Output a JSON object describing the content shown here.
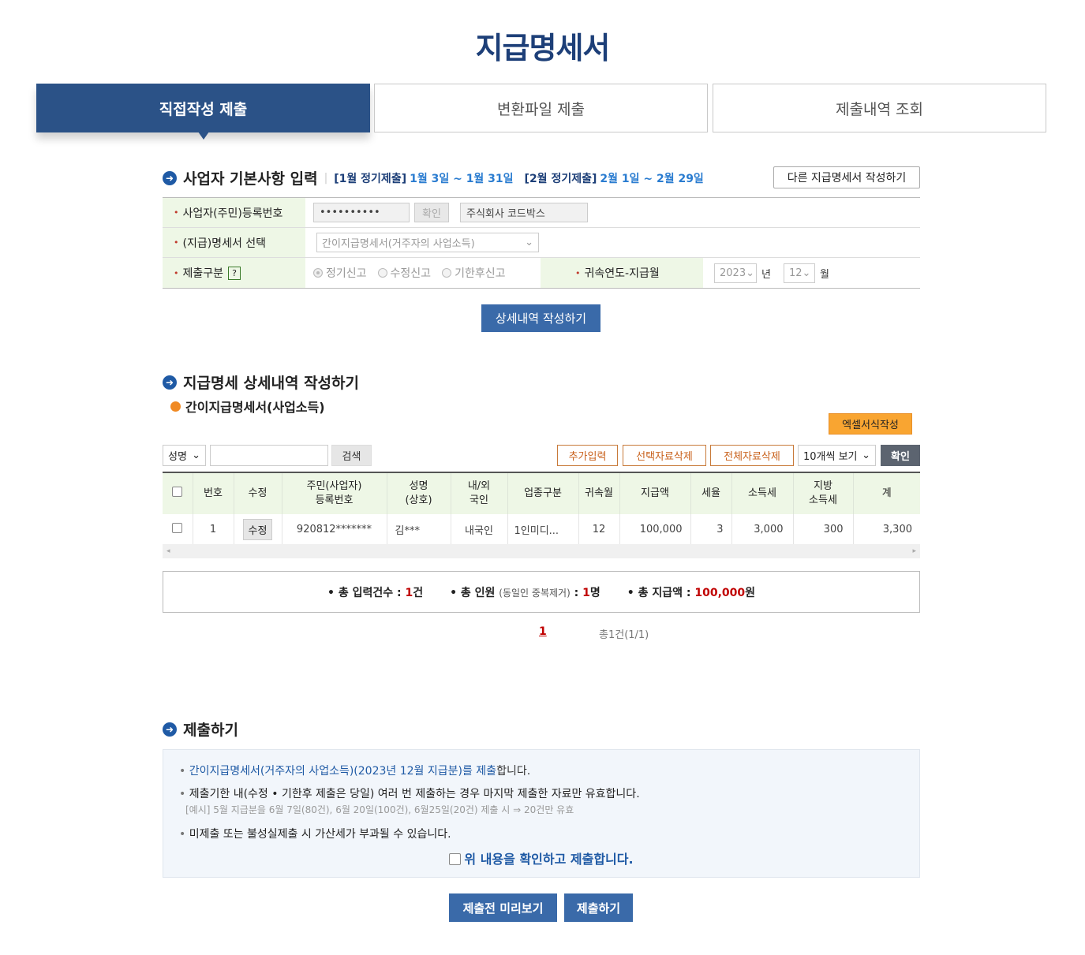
{
  "title": "지급명세서",
  "tabs": [
    {
      "label": "직접작성 제출",
      "active": true
    },
    {
      "label": "변환파일 제출"
    },
    {
      "label": "제출내역 조회"
    }
  ],
  "basic": {
    "heading": "사업자 기본사항 입력",
    "period1_label": "[1월 정기제출]",
    "period1": "1월 3일 ~ 1월 31일",
    "period2_label": "[2월 정기제출]",
    "period2": "2월 1일 ~ 2월 29일",
    "other_button": "다른 지급명세서 작성하기",
    "reg_label": "사업자(주민)등록번호",
    "reg_value": "••••••••••",
    "confirm": "확인",
    "company": "주식회사 코드박스",
    "type_label": "(지급)명세서 선택",
    "type_value": "간이지급명세서(거주자의 사업소득)",
    "submit_type_label": "제출구분",
    "help": "?",
    "radios": [
      "정기신고",
      "수정신고",
      "기한후신고"
    ],
    "radio_selected": "정기신고",
    "period_label": "귀속연도-지급월",
    "year": "2023",
    "year_unit": "년",
    "month": "12",
    "month_unit": "월",
    "detail_button": "상세내역 작성하기"
  },
  "detail": {
    "heading": "지급명세 상세내역 작성하기",
    "subheading": "간이지급명세서(사업소득)",
    "excel_button": "엑셀서식작성",
    "search_field": "성명",
    "search_value": "",
    "search_button": "검색",
    "add": "추가입력",
    "delete_selected": "선택자료삭제",
    "delete_all": "전체자료삭제",
    "page_size": "10개씩 보기",
    "confirm": "확인",
    "columns": [
      "",
      "번호",
      "수정",
      "주민(사업자)\n등록번호",
      "성명\n(상호)",
      "내/외\n국인",
      "업종구분",
      "귀속월",
      "지급액",
      "세율",
      "소득세",
      "지방\n소득세",
      "계"
    ],
    "rows": [
      {
        "no": "1",
        "edit": "수정",
        "id": "920812*******",
        "name": "김***",
        "nat": "내국인",
        "biz": "1인미디...",
        "month": "12",
        "amount": "100,000",
        "rate": "3",
        "tax": "3,000",
        "local": "300",
        "total": "3,300"
      }
    ],
    "summary": {
      "count_label": "총 입력건수 :",
      "count": "1",
      "count_unit": "건",
      "people_label": "총 인원",
      "people_note": "(동일인 중복제거)",
      "people_sep": ":",
      "people": "1",
      "people_unit": "명",
      "amount_label": "총 지급액 :",
      "amount": "100,000",
      "amount_unit": "원"
    },
    "page": "1",
    "page_info": "총1건(1/1)"
  },
  "submit": {
    "heading": "제출하기",
    "line1": "간이지급명세서(거주자의 사업소득)(2023년 12월 지급분)를 제출",
    "line1_end": "합니다.",
    "line2": "제출기한 내(수정 • 기한후 제출은 당일) 여러 번 제출하는 경우 마지막 제출한 자료만 유효합니다.",
    "example": "[예시] 5월 지급분을 6월 7일(80건), 6월 20일(100건), 6월25일(20건) 제출 시 ⇒ 20건만 유효",
    "line3": "미제출 또는 불성실제출 시 가산세가 부과될 수 있습니다.",
    "agree": "위 내용을 확인하고 제출합니다.",
    "preview": "제출전 미리보기",
    "submit": "제출하기"
  },
  "colors": {
    "primary": "#2b5287",
    "button": "#3a6aa9",
    "orange": "#f9a531",
    "label_bg": "#eef7e6",
    "red": "#c00000"
  }
}
